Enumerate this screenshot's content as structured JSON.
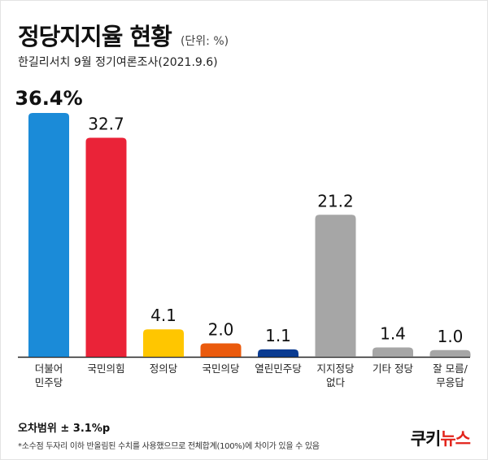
{
  "title": "정당지지율  현황",
  "unit": "(단위: %)",
  "subtitle": "한길리서치 9월 정기여론조사(2021.9.6)",
  "chart_data": {
    "type": "bar",
    "categories": [
      "더불어\n민주당",
      "국민의힘",
      "정의당",
      "국민의당",
      "열린민주당",
      "지지정당\n없다",
      "기타 정당",
      "잘 모름/\n무응답"
    ],
    "values": [
      36.4,
      32.7,
      4.1,
      2.0,
      1.1,
      21.2,
      1.4,
      1.0
    ],
    "value_labels": [
      "36.4%",
      "32.7",
      "4.1",
      "2.0",
      "1.1",
      "21.2",
      "1.4",
      "1.0"
    ],
    "colors": [
      "#1b8bd8",
      "#ea2338",
      "#ffc600",
      "#ea5a0d",
      "#0a3b91",
      "#a6a6a6",
      "#a6a6a6",
      "#a6a6a6"
    ],
    "ylim": [
      0,
      36.4
    ]
  },
  "footer": {
    "error_margin": "오차범위 ± 3.1%p",
    "note": "*소수점 두자리 이하 반올림된 수치를 사용했으므로 전체합계(100%)에 차이가 있을 수 있음"
  },
  "logo": {
    "part1": "쿠키",
    "part2": "뉴스"
  }
}
